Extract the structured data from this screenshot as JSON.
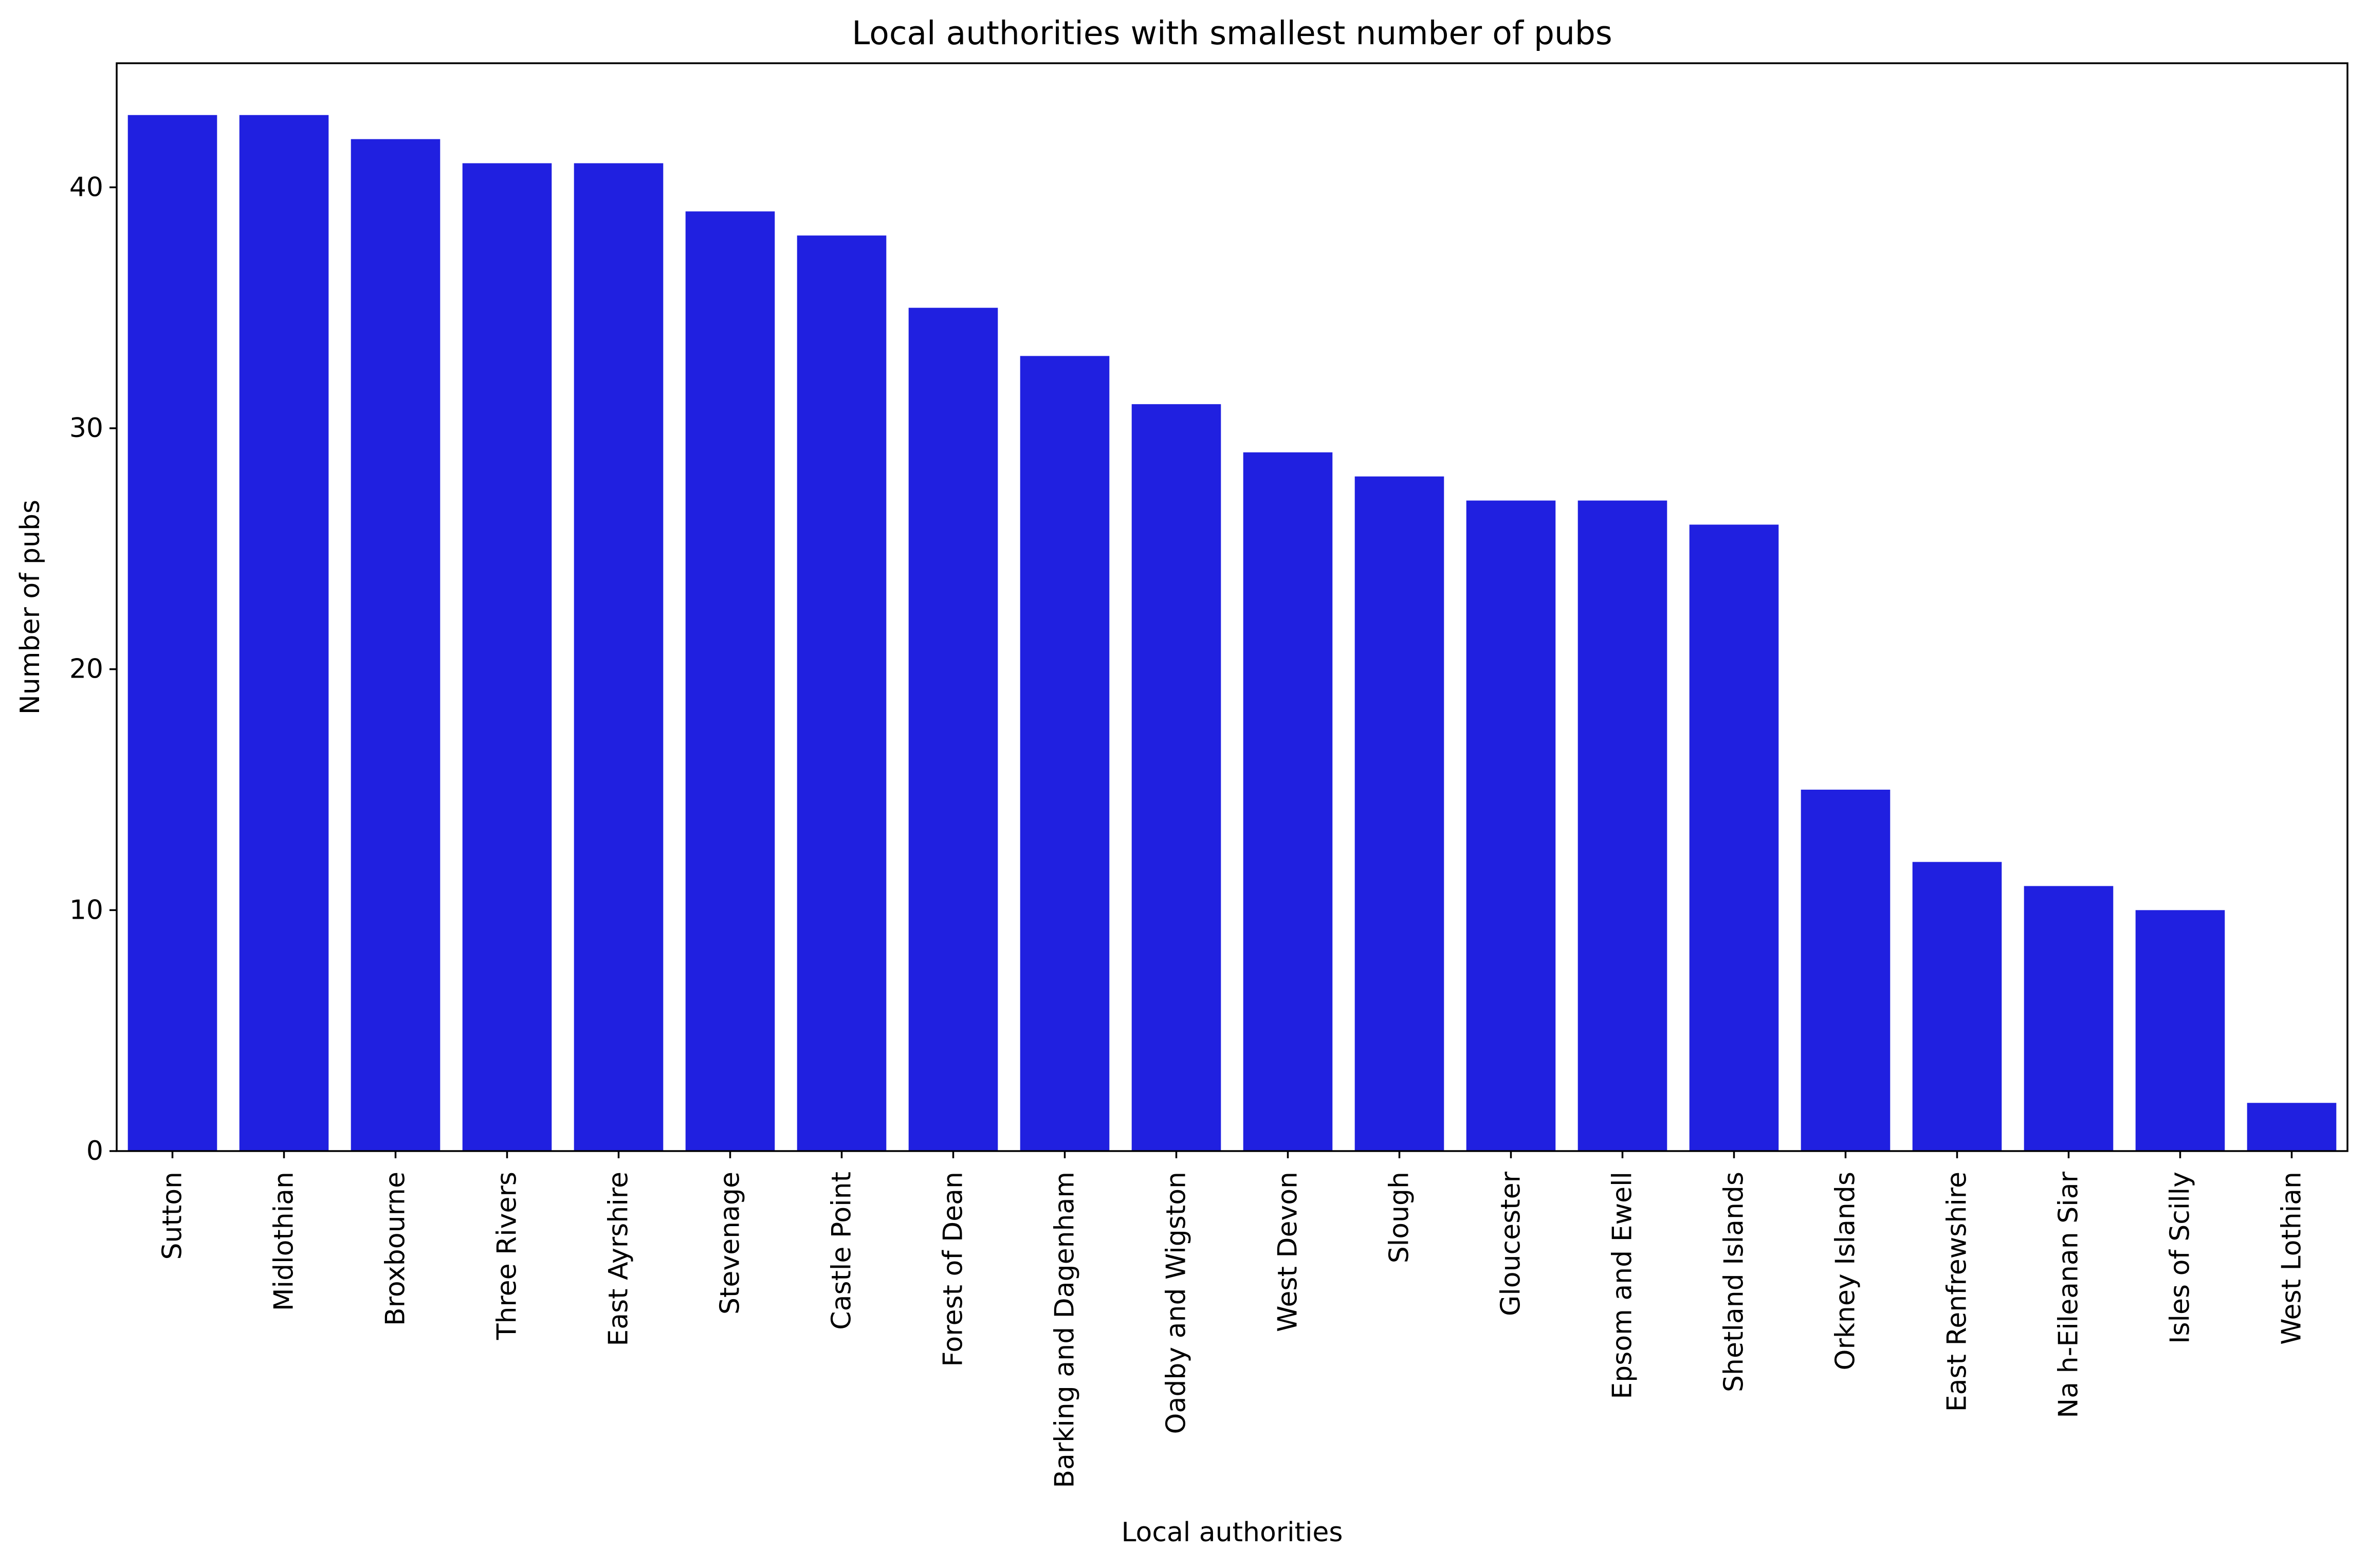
{
  "chart_data": {
    "type": "bar",
    "title": "Local authorities with smallest number of pubs",
    "xlabel": "Local authorities",
    "ylabel": "Number of pubs",
    "ylim": [
      0,
      45.15
    ],
    "yticks": [
      0,
      10,
      20,
      30,
      40
    ],
    "grid": false,
    "bar_color": "#2020e0",
    "categories": [
      "Sutton",
      "Midlothian",
      "Broxbourne",
      "Three Rivers",
      "East Ayrshire",
      "Stevenage",
      "Castle Point",
      "Forest of Dean",
      "Barking and Dagenham",
      "Oadby and Wigston",
      "West Devon",
      "Slough",
      "Gloucester",
      "Epsom and Ewell",
      "Shetland Islands",
      "Orkney Islands",
      "East Renfrewshire",
      "Na h-Eileanan Siar",
      "Isles of Scilly",
      "West Lothian"
    ],
    "values": [
      43,
      43,
      42,
      41,
      41,
      39,
      38,
      35,
      33,
      31,
      29,
      28,
      27,
      27,
      26,
      15,
      12,
      11,
      10,
      2
    ]
  }
}
